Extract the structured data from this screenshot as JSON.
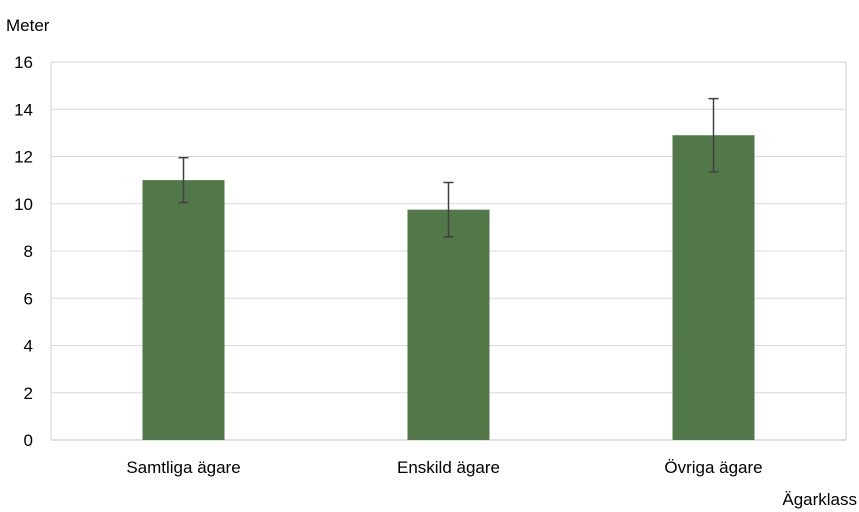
{
  "chart_data": {
    "type": "bar",
    "title": "",
    "ylabel": "Meter",
    "xlabel": "Ägarklass",
    "categories": [
      "Samtliga ägare",
      "Enskild ägare",
      "Övriga ägare"
    ],
    "values": [
      11.0,
      9.75,
      12.9
    ],
    "error_low": [
      10.05,
      8.6,
      11.35
    ],
    "error_high": [
      11.95,
      10.9,
      14.45
    ],
    "ylim": [
      0,
      16
    ],
    "yticks": [
      "0",
      "2",
      "4",
      "6",
      "8",
      "10",
      "12",
      "14",
      "16"
    ],
    "grid": true,
    "legend": "none",
    "bar_color": "#52784a",
    "error_bar_color": "#404040"
  }
}
